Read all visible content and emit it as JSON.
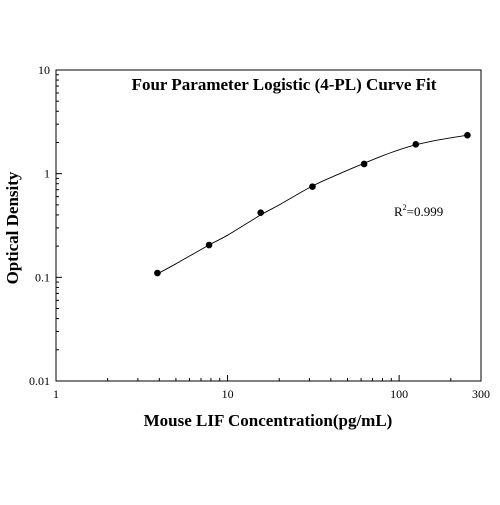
{
  "chart_data": {
    "type": "scatter",
    "title": "Four Parameter Logistic (4-PL) Curve Fit",
    "xlabel": "Mouse LIF Concentration(pg/mL)",
    "ylabel": "Optical Density",
    "x_scale": "log",
    "y_scale": "log",
    "xlim": [
      1,
      300
    ],
    "ylim": [
      0.01,
      10
    ],
    "x_ticks": [
      1,
      10,
      100,
      300
    ],
    "x_tick_labels": [
      "1",
      "10",
      "100",
      "300"
    ],
    "y_ticks": [
      0.01,
      0.1,
      1,
      10
    ],
    "y_tick_labels": [
      "0.01",
      "0.1",
      "1",
      "10"
    ],
    "grid": false,
    "series": [
      {
        "x": [
          3.9,
          7.8,
          15.6,
          31.25,
          62.5,
          125,
          250
        ],
        "y": [
          0.11,
          0.205,
          0.42,
          0.75,
          1.24,
          1.92,
          2.35
        ]
      }
    ],
    "fit_curve": {
      "model": "4PL",
      "points": [
        [
          3.9,
          0.108
        ],
        [
          5,
          0.135
        ],
        [
          7.8,
          0.205
        ],
        [
          10,
          0.255
        ],
        [
          15.6,
          0.4
        ],
        [
          20,
          0.5
        ],
        [
          31.25,
          0.76
        ],
        [
          45,
          1.0
        ],
        [
          62.5,
          1.26
        ],
        [
          90,
          1.6
        ],
        [
          125,
          1.9
        ],
        [
          180,
          2.15
        ],
        [
          250,
          2.35
        ]
      ]
    },
    "annotation": {
      "base": "R",
      "superscript": "2",
      "text": "=0.999"
    },
    "colors": {
      "markers": "#000000",
      "curve": "#000000",
      "axes": "#000000"
    }
  }
}
